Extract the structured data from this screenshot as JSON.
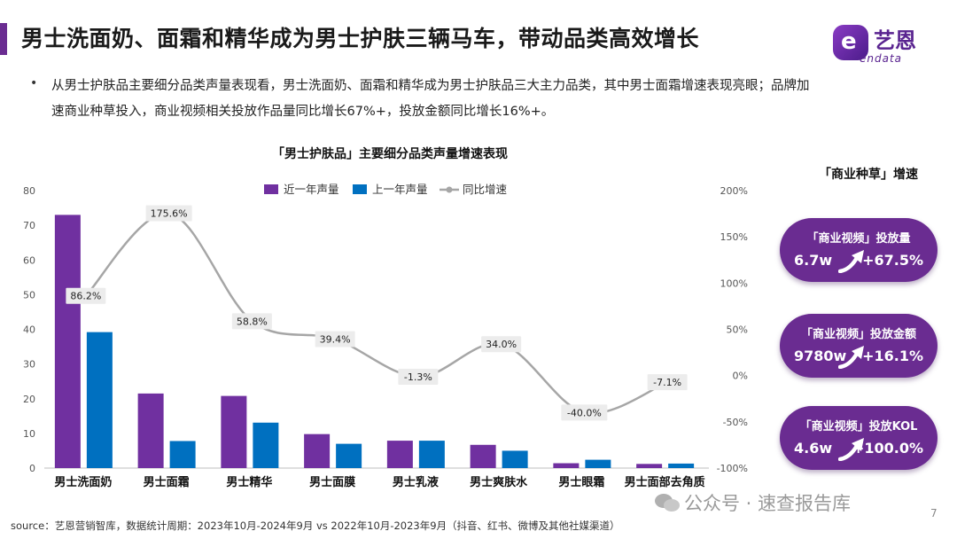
{
  "page": {
    "title": "男士洗面奶、面霜和精华成为男士护肤三辆马车，带动品类高效增长",
    "bullet": "•",
    "summary": "从男士护肤品主要细分品类声量表现看，男士洗面奶、面霜和精华成为男士护肤品三大主力品类，其中男士面霜增速表现亮眼；品牌加速商业种草投入，商业视频相关投放作品量同比增长67%+，投放金额同比增长16%+。",
    "source": "source：艺恩营销智库，数据统计周期：2023年10月-2024年9月 vs 2022年10月-2023年9月（抖音、红书、微博及其他社媒渠道）",
    "page_number": "7"
  },
  "logo": {
    "cn": "艺恩",
    "en": "endata",
    "mark": "e"
  },
  "watermark": {
    "text": "公众号 · 速查报告库"
  },
  "colors": {
    "brand": "#6a2c91",
    "recent": "#7030a0",
    "previous": "#0070c0",
    "line": "#a6a6a6"
  },
  "chart_data": {
    "type": "bar",
    "title": "「男士护肤品」主要细分品类声量增速表现",
    "categories": [
      "男士洗面奶",
      "男士面霜",
      "男士精华",
      "男士面膜",
      "男士乳液",
      "男士爽肤水",
      "男士眼霜",
      "男士面部去角质"
    ],
    "series": [
      {
        "name": "近一年声量",
        "type": "bar",
        "axis": "left",
        "values": [
          73,
          21.5,
          20.8,
          9.8,
          7.9,
          6.7,
          1.4,
          1.2
        ]
      },
      {
        "name": "上一年声量",
        "type": "bar",
        "axis": "left",
        "values": [
          39.2,
          7.8,
          13.1,
          7.0,
          7.9,
          5.0,
          2.4,
          1.3
        ]
      },
      {
        "name": "同比增速",
        "type": "line",
        "axis": "right",
        "values": [
          86.2,
          175.6,
          58.8,
          39.4,
          -1.3,
          34.0,
          -40.0,
          -7.1
        ],
        "labels": [
          "86.2%",
          "175.6%",
          "58.8%",
          "39.4%",
          "-1.3%",
          "34.0%",
          "-40.0%",
          "-7.1%"
        ]
      }
    ],
    "y_left": {
      "range": [
        0,
        80
      ],
      "ticks": [
        "0",
        "10",
        "20",
        "30",
        "40",
        "50",
        "60",
        "70",
        "80"
      ]
    },
    "y_right": {
      "range": [
        -100,
        200
      ],
      "ticks": [
        "-100%",
        "-50%",
        "0%",
        "50%",
        "100%",
        "150%",
        "200%"
      ]
    },
    "legend_position": "top-right",
    "grid": false
  },
  "side_panel": {
    "title": "「商业种草」增速",
    "cards": [
      {
        "label": "「商业视频」投放量",
        "value": "6.7w",
        "growth": "+67.5%",
        "icon": "growth-arrow-icon"
      },
      {
        "label": "「商业视频」投放金额",
        "value": "9780w",
        "growth": "+16.1%",
        "icon": "growth-arrow-icon"
      },
      {
        "label": "「商业视频」投放KOL",
        "value": "4.6w",
        "growth": "+100.0%",
        "icon": "growth-arrow-icon"
      }
    ]
  }
}
